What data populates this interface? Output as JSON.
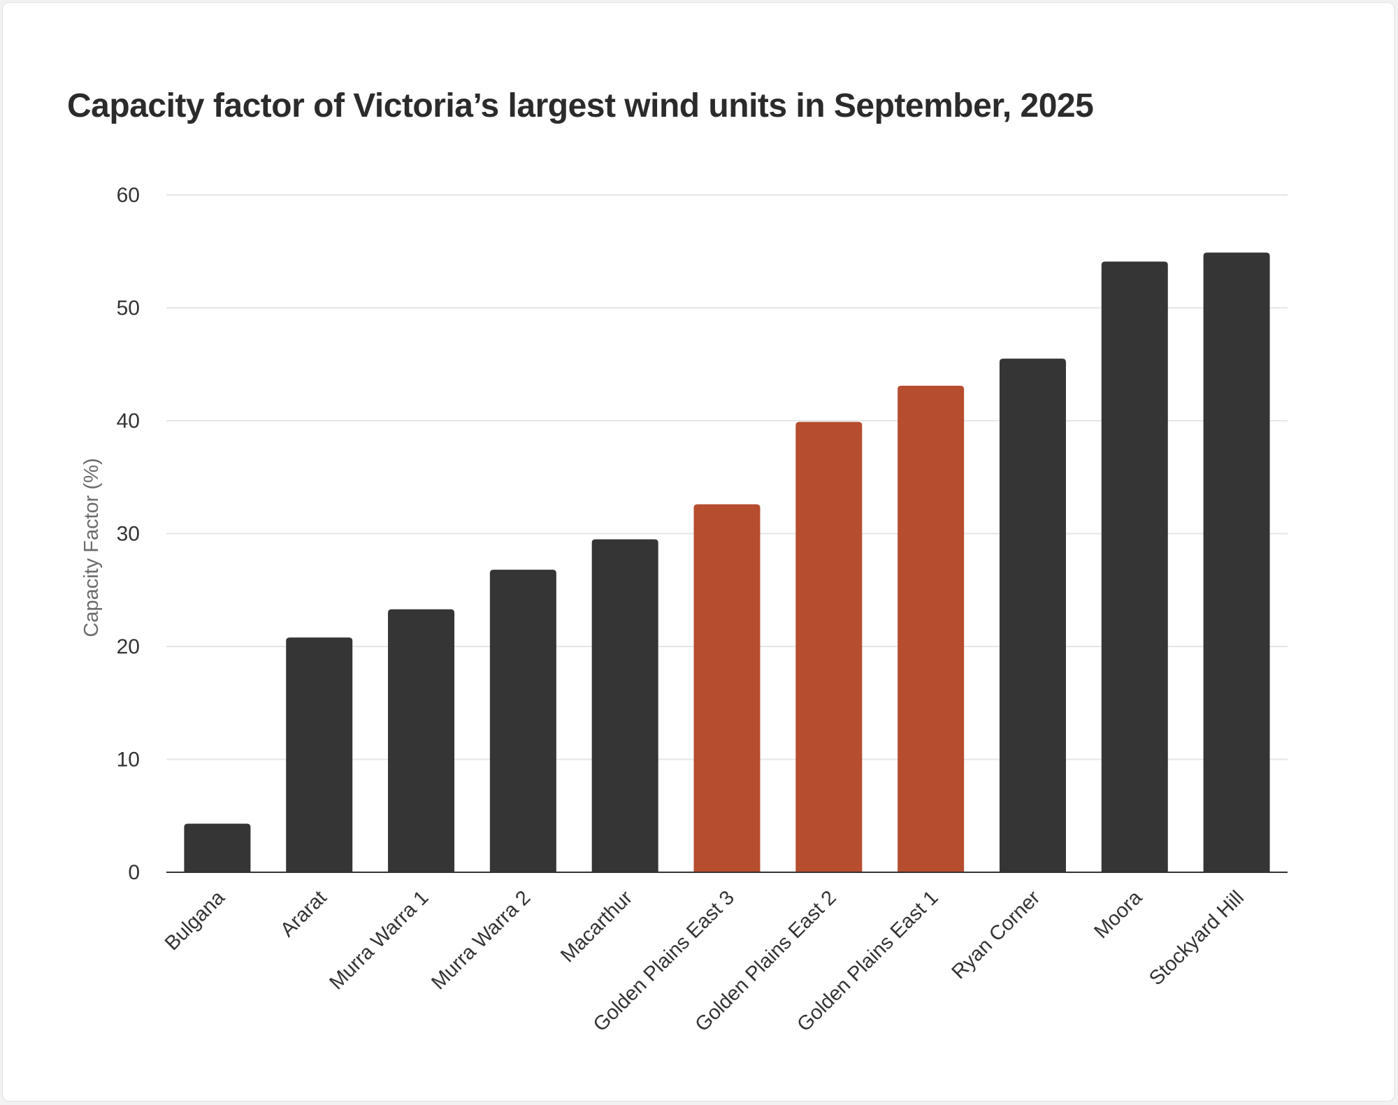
{
  "colors": {
    "default_bar": "#353535",
    "highlight_bar": "#b64d2f",
    "grid": "#e6e6e6",
    "axis": "#333333"
  },
  "chart_data": {
    "type": "bar",
    "title": "Capacity factor of Victoria’s largest wind units in September, 2025",
    "xlabel": "",
    "ylabel": "Capacity Factor (%)",
    "ylim": [
      0,
      60
    ],
    "yticks": [
      0,
      10,
      20,
      30,
      40,
      50,
      60
    ],
    "grid": true,
    "categories": [
      "Bulgana",
      "Ararat",
      "Murra Warra 1",
      "Murra Warra 2",
      "Macarthur",
      "Golden Plains East 3",
      "Golden Plains East 2",
      "Golden Plains East 1",
      "Ryan Corner",
      "Moora",
      "Stockyard Hill"
    ],
    "values": [
      4.3,
      20.8,
      23.3,
      26.8,
      29.5,
      32.6,
      39.9,
      43.1,
      45.5,
      54.1,
      54.9
    ],
    "highlighted": [
      false,
      false,
      false,
      false,
      false,
      true,
      true,
      true,
      false,
      false,
      false
    ]
  }
}
